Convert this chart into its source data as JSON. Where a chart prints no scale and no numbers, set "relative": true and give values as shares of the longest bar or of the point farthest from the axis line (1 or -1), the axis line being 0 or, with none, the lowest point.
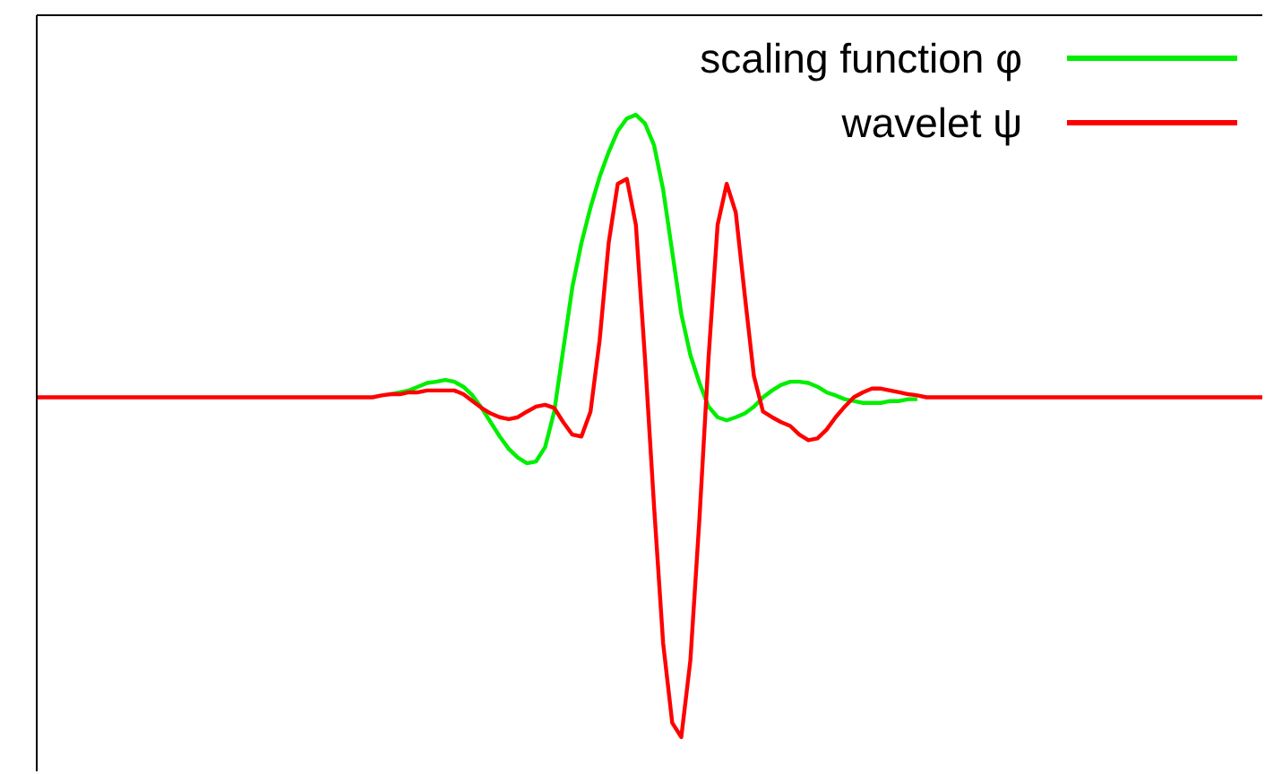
{
  "chart_data": {
    "type": "line",
    "relative": true,
    "legend": "top right",
    "categories": [
      null,
      null,
      null,
      null,
      null,
      null,
      null,
      null,
      null,
      null,
      null,
      null,
      null,
      null,
      null,
      null,
      null,
      null,
      null,
      null,
      null,
      null,
      null,
      null,
      null,
      null,
      null,
      null,
      null,
      null,
      null,
      null,
      null,
      null,
      null,
      null,
      null,
      null,
      null,
      null,
      null,
      null,
      null,
      null,
      null,
      null,
      null,
      null,
      null,
      null,
      null,
      null,
      null,
      null,
      null,
      null,
      null,
      null,
      null,
      null,
      null,
      null,
      null,
      null,
      null,
      null,
      null,
      null,
      null,
      null,
      null,
      null,
      null,
      null,
      null,
      null,
      null,
      null,
      null,
      null,
      null,
      null,
      null,
      null,
      null,
      null,
      null,
      null,
      null,
      null,
      null,
      null,
      null,
      null,
      null,
      null,
      null,
      null,
      null,
      null,
      null,
      null,
      null,
      null,
      null,
      null,
      null,
      null,
      null,
      null,
      null,
      null,
      null,
      null,
      null,
      null,
      null,
      null,
      null,
      null,
      null,
      null,
      null,
      null,
      null,
      null,
      null,
      null,
      null,
      null,
      null,
      null,
      null,
      null,
      null,
      null
    ],
    "series": [
      {
        "name": "scaling function φ",
        "color": "#00ee00",
        "values": [
          null,
          null,
          null,
          null,
          null,
          null,
          null,
          null,
          null,
          null,
          null,
          null,
          null,
          null,
          null,
          null,
          null,
          null,
          null,
          null,
          null,
          null,
          null,
          null,
          null,
          null,
          null,
          null,
          null,
          null,
          null,
          null,
          null,
          null,
          null,
          null,
          null,
          null,
          null,
          0.551,
          0.554,
          0.557,
          0.563,
          0.569,
          0.571,
          0.574,
          0.571,
          0.563,
          0.549,
          0.529,
          0.506,
          0.483,
          0.463,
          0.449,
          0.44,
          0.443,
          0.466,
          0.523,
          0.623,
          0.723,
          0.794,
          0.851,
          0.9,
          0.94,
          0.974,
          0.994,
          1,
          0.986,
          0.951,
          0.88,
          0.78,
          0.68,
          0.614,
          0.569,
          0.531,
          0.514,
          0.509,
          0.514,
          0.52,
          0.531,
          0.546,
          0.557,
          0.566,
          0.571,
          0.571,
          0.569,
          0.563,
          0.554,
          0.549,
          0.543,
          0.54,
          0.537,
          0.537,
          0.537,
          0.54,
          0.54,
          0.543,
          0.543,
          null,
          null,
          null,
          null,
          null,
          null,
          null,
          null,
          null,
          null,
          null,
          null,
          null,
          null,
          null,
          null,
          null,
          null,
          null,
          null,
          null,
          null,
          null,
          null,
          null,
          null,
          null,
          null,
          null,
          null,
          null,
          null,
          null,
          null,
          null,
          null,
          null,
          null
        ]
      },
      {
        "name": "wavelet ψ",
        "color": "#ff0000",
        "values": [
          0.546,
          0.546,
          0.546,
          0.546,
          0.546,
          0.546,
          0.546,
          0.546,
          0.546,
          0.546,
          0.546,
          0.546,
          0.546,
          0.546,
          0.546,
          0.546,
          0.546,
          0.546,
          0.546,
          0.546,
          0.546,
          0.546,
          0.546,
          0.546,
          0.546,
          0.546,
          0.546,
          0.546,
          0.546,
          0.546,
          0.546,
          0.546,
          0.546,
          0.546,
          0.546,
          0.546,
          0.546,
          0.546,
          0.549,
          0.551,
          0.551,
          0.554,
          0.554,
          0.557,
          0.557,
          0.557,
          0.557,
          0.551,
          0.54,
          0.529,
          0.52,
          0.514,
          0.511,
          0.514,
          0.523,
          0.531,
          0.534,
          0.529,
          0.506,
          0.486,
          0.483,
          0.523,
          0.637,
          0.794,
          0.889,
          0.897,
          0.823,
          0.609,
          0.371,
          0.151,
          0.023,
          0,
          0.123,
          0.351,
          0.609,
          0.823,
          0.889,
          0.843,
          0.709,
          0.58,
          0.523,
          0.514,
          0.506,
          0.5,
          0.486,
          0.477,
          0.48,
          0.494,
          0.514,
          0.531,
          0.546,
          0.554,
          0.56,
          0.56,
          0.557,
          0.554,
          0.551,
          0.549,
          0.546,
          0.546,
          0.546,
          0.546,
          0.546,
          0.546,
          0.546,
          0.546,
          0.546,
          0.546,
          0.546,
          0.546,
          0.546,
          0.546,
          0.546,
          0.546,
          0.546,
          0.546,
          0.546,
          0.546,
          0.546,
          0.546,
          0.546,
          0.546,
          0.546,
          0.546,
          0.546,
          0.546,
          0.546,
          0.546,
          0.546,
          0.546,
          0.546,
          0.546,
          0.546,
          0.546,
          0.546,
          0.546
        ]
      }
    ]
  }
}
